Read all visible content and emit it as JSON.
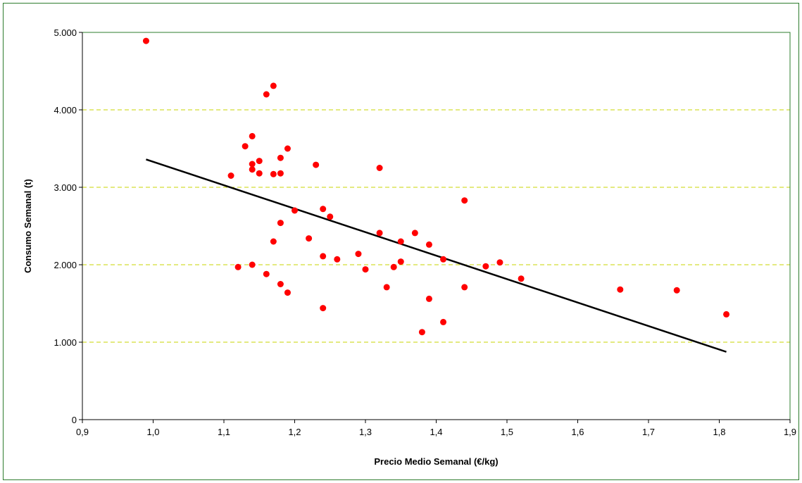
{
  "chart_data": {
    "type": "scatter",
    "title": "",
    "xlabel": "Precio Medio Semanal (€/kg)",
    "ylabel": "Consumo Semanal (t)",
    "xlim": [
      0.9,
      1.9
    ],
    "ylim": [
      0,
      5000
    ],
    "x_ticks": [
      0.9,
      1.0,
      1.1,
      1.2,
      1.3,
      1.4,
      1.5,
      1.6,
      1.7,
      1.8,
      1.9
    ],
    "x_tick_labels": [
      "0,9",
      "1,0",
      "1,1",
      "1,2",
      "1,3",
      "1,4",
      "1,5",
      "1,6",
      "1,7",
      "1,8",
      "1,9"
    ],
    "y_ticks": [
      0,
      1000,
      2000,
      3000,
      4000,
      5000
    ],
    "y_tick_labels": [
      "0",
      "1.000",
      "2.000",
      "3.000",
      "4.000",
      "5.000"
    ],
    "grid": "horizontal dashed",
    "legend": "none",
    "colors": {
      "points": "#ff0000",
      "trendline": "#000000",
      "grid": "#c8d400",
      "plot_border": "#2e7d2e",
      "frame_border": "#2e7d2e"
    },
    "series": [
      {
        "x": [
          0.99,
          1.11,
          1.12,
          1.13,
          1.14,
          1.14,
          1.14,
          1.14,
          1.15,
          1.15,
          1.16,
          1.16,
          1.17,
          1.17,
          1.17,
          1.18,
          1.18,
          1.18,
          1.18,
          1.19,
          1.19,
          1.2,
          1.22,
          1.23,
          1.24,
          1.24,
          1.24,
          1.25,
          1.26,
          1.29,
          1.3,
          1.32,
          1.32,
          1.33,
          1.34,
          1.35,
          1.35,
          1.37,
          1.38,
          1.39,
          1.39,
          1.41,
          1.41,
          1.44,
          1.44,
          1.47,
          1.49,
          1.52,
          1.66,
          1.74,
          1.81
        ],
        "y": [
          4890,
          3150,
          1970,
          3530,
          3660,
          3300,
          3230,
          2000,
          3340,
          3180,
          4200,
          1880,
          4310,
          3170,
          2300,
          3380,
          3180,
          2540,
          1750,
          3500,
          1640,
          2700,
          2340,
          3290,
          2720,
          2110,
          1440,
          2620,
          2070,
          2140,
          1940,
          3250,
          2410,
          1710,
          1970,
          2300,
          2040,
          2410,
          1130,
          2260,
          1560,
          2070,
          1260,
          2830,
          1710,
          1980,
          2030,
          1820,
          1680,
          1670,
          1360
        ]
      }
    ],
    "trendline": {
      "x": [
        0.99,
        1.81
      ],
      "y": [
        3360,
        875
      ]
    }
  }
}
